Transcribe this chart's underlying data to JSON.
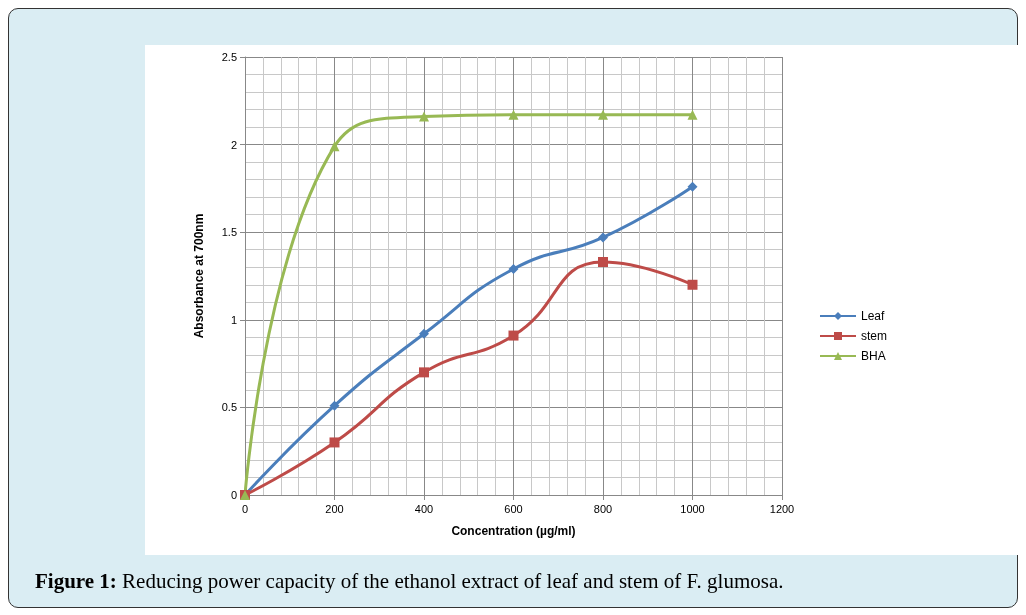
{
  "chart_data": {
    "type": "line",
    "xlabel": "Concentration (µg/ml)",
    "ylabel": "Absorbance at 700nm",
    "x": [
      0,
      200,
      400,
      600,
      800,
      1000
    ],
    "series": [
      {
        "name": "Leaf",
        "color": "#4a7ebb",
        "marker": "diamond",
        "values": [
          0,
          0.51,
          0.92,
          1.29,
          1.47,
          1.76
        ]
      },
      {
        "name": "stem",
        "color": "#be4b48",
        "marker": "square",
        "values": [
          0,
          0.3,
          0.7,
          0.91,
          1.33,
          1.2
        ]
      },
      {
        "name": "BHA",
        "color": "#98b954",
        "marker": "triangle",
        "values": [
          0,
          1.99,
          2.16,
          2.17,
          2.17,
          2.17
        ]
      }
    ],
    "xlim": [
      0,
      1200
    ],
    "xticks": [
      0,
      200,
      400,
      600,
      800,
      1000,
      1200
    ],
    "ylim": [
      0,
      2.5
    ],
    "yticks": [
      0,
      0.5,
      1,
      1.5,
      2,
      2.5
    ],
    "grid": true,
    "legend": "right",
    "annotations": [
      "Figure 1: Reducing power capacity of the ethanol extract of leaf and stem of F. glumosa."
    ]
  }
}
